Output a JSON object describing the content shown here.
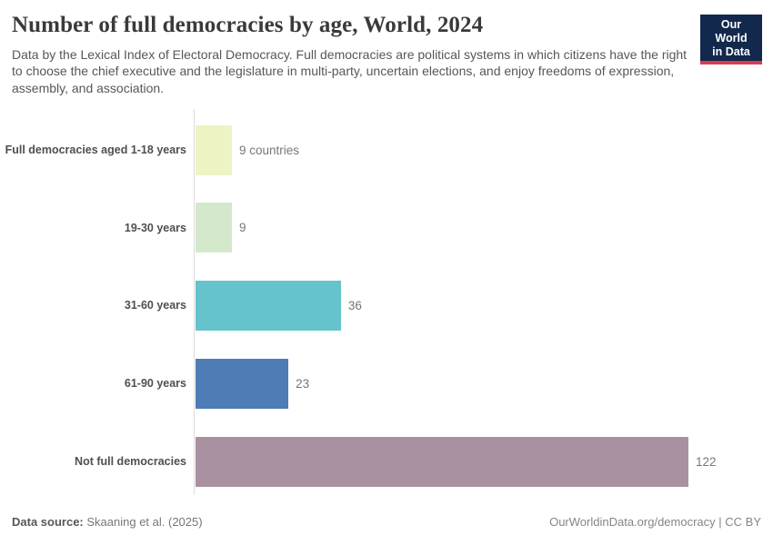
{
  "header": {
    "title": "Number of full democracies by age, World, 2024",
    "subtitle": "Data by the Lexical Index of Electoral Democracy. Full democracies are political systems in which citizens have the right to choose the chief executive and the legislature in multi-party, uncertain elections, and enjoy freedoms of expression, assembly, and association.",
    "logo": {
      "line1": "Our World",
      "line2": "in Data",
      "bg_color": "#12294d",
      "accent_color": "#d73c4e"
    }
  },
  "chart_data": {
    "type": "bar",
    "orientation": "horizontal",
    "title": "Number of full democracies by age, World, 2024",
    "categories": [
      "Full democracies aged 1-18 years",
      "19-30 years",
      "31-60 years",
      "61-90 years",
      "Not full democracies"
    ],
    "values": [
      9,
      9,
      36,
      23,
      122
    ],
    "value_labels": [
      "9 countries",
      "9",
      "36",
      "23",
      "122"
    ],
    "bar_colors": [
      "#eef3c3",
      "#d4e9cc",
      "#65c3cb",
      "#4d7db4",
      "#a991a2"
    ],
    "xlim": [
      0,
      122
    ],
    "grid": false,
    "legend": "none",
    "axis_line_color": "#dcdcdc"
  },
  "footer": {
    "datasource_label": "Data source:",
    "datasource_value": "Skaaning et al. (2025)",
    "url": "OurWorldinData.org/democracy",
    "separator": " | ",
    "license": "CC BY"
  }
}
